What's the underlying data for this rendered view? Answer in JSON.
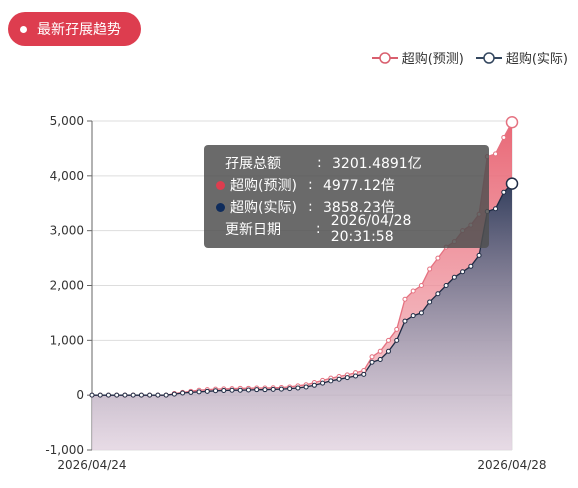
{
  "badge": {
    "label": "最新孖展趋势"
  },
  "legend": [
    {
      "name": "超购(预测)",
      "color": "#d95f6e"
    },
    {
      "name": "超购(实际)",
      "color": "#34475f"
    }
  ],
  "tooltip": {
    "rows": [
      {
        "label": "孖展总额",
        "value": "3201.4891亿",
        "dot": ""
      },
      {
        "label": "超购(预测)",
        "value": "4977.12倍",
        "dot": "#dd3d4f"
      },
      {
        "label": "超购(实际)",
        "value": "3858.23倍",
        "dot": "#0f2c5c"
      },
      {
        "label": "更新日期",
        "value": "2026/04/28 20:31:58",
        "dot": ""
      }
    ],
    "separator": ":"
  },
  "chart_data": {
    "type": "area",
    "x_start_label": "2026/04/24",
    "x_end_label": "2026/04/28",
    "ylim": [
      -1000,
      5000
    ],
    "yticks": [
      5000,
      4000,
      3000,
      2000,
      1000,
      0,
      -1000
    ],
    "ytick_labels": [
      "5,000",
      "4,000",
      "3,000",
      "2,000",
      "1,000",
      "0",
      "-1,000"
    ],
    "grid": true,
    "legend_position": "top-right",
    "series": [
      {
        "name": "超购(预测)",
        "color": "#d95f6e",
        "values": [
          0,
          0,
          0,
          0,
          0,
          0,
          0,
          0,
          0,
          0,
          30,
          50,
          70,
          90,
          100,
          110,
          115,
          120,
          125,
          125,
          130,
          130,
          135,
          140,
          150,
          170,
          190,
          230,
          270,
          310,
          340,
          370,
          410,
          450,
          700,
          800,
          1000,
          1200,
          1750,
          1900,
          2000,
          2300,
          2500,
          2700,
          2800,
          3000,
          3100,
          3300,
          4350,
          4400,
          4700,
          4977.12
        ]
      },
      {
        "name": "超购(实际)",
        "color": "#34475f",
        "values": [
          0,
          0,
          0,
          0,
          0,
          0,
          0,
          0,
          0,
          0,
          20,
          40,
          50,
          60,
          70,
          80,
          85,
          90,
          90,
          95,
          100,
          100,
          105,
          110,
          120,
          130,
          150,
          180,
          220,
          260,
          290,
          320,
          350,
          380,
          600,
          650,
          800,
          1000,
          1350,
          1450,
          1500,
          1700,
          1850,
          2000,
          2150,
          2250,
          2350,
          2550,
          3350,
          3400,
          3700,
          3858.23
        ]
      }
    ]
  }
}
